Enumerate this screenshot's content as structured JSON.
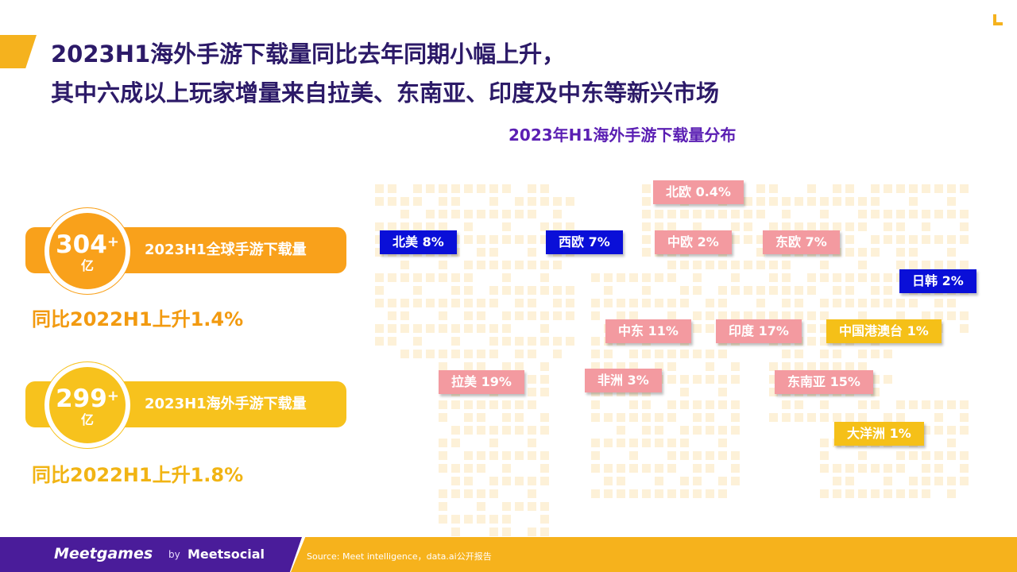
{
  "title": {
    "line1": "2023H1海外手游下载量同比去年同期小幅上升，",
    "line2": "其中六成以上玩家增量来自拉美、东南亚、印度及中东等新兴市场"
  },
  "chart_title": "2023年H1海外手游下载量分布",
  "stats": [
    {
      "value": "304",
      "plus": "+",
      "unit": "亿",
      "label": "2023H1全球手游下载量",
      "growth": "同比2022H1上升1.4%",
      "color": "#f9a11b"
    },
    {
      "value": "299",
      "plus": "+",
      "unit": "亿",
      "label": "2023H1海外手游下载量",
      "growth": "同比2022H1上升1.8%",
      "color": "#f7c21d"
    }
  ],
  "regions": [
    {
      "label": "北美 8%",
      "style": "blue"
    },
    {
      "label": "西欧 7%",
      "style": "blue"
    },
    {
      "label": "北欧 0.4%",
      "style": "pink"
    },
    {
      "label": "中欧 2%",
      "style": "pink"
    },
    {
      "label": "东欧 7%",
      "style": "pink"
    },
    {
      "label": "日韩 2%",
      "style": "blue"
    },
    {
      "label": "中东 11%",
      "style": "pink"
    },
    {
      "label": "印度 17%",
      "style": "pink"
    },
    {
      "label": "中国港澳台 1%",
      "style": "gold"
    },
    {
      "label": "拉美 19%",
      "style": "pink"
    },
    {
      "label": "非洲 3%",
      "style": "pink"
    },
    {
      "label": "东南亚 15%",
      "style": "pink"
    },
    {
      "label": "大洋洲 1%",
      "style": "gold"
    }
  ],
  "colors": {
    "blue": "#0a0fd8",
    "pink": "#f39aa0",
    "gold": "#f5c018",
    "footer_purple": "#4a1c9a",
    "footer_yellow": "#f6b21c"
  },
  "footer": {
    "brand": "Meetgames",
    "by": "by",
    "brand2": "Meetsocial",
    "source": "Source: Meet intelligence，data.ai公开报告"
  }
}
